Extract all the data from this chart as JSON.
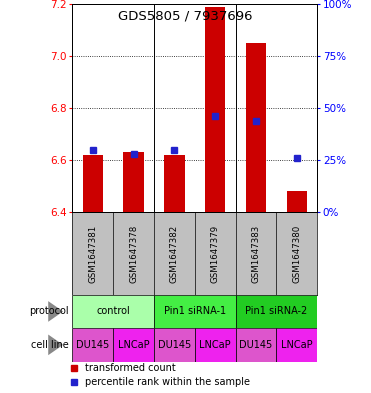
{
  "title": "GDS5805 / 7937696",
  "samples": [
    "GSM1647381",
    "GSM1647378",
    "GSM1647382",
    "GSM1647379",
    "GSM1647383",
    "GSM1647380"
  ],
  "bar_values": [
    6.62,
    6.63,
    6.62,
    7.19,
    7.05,
    6.48
  ],
  "percentile_pct": [
    30,
    28,
    30,
    46,
    44,
    26
  ],
  "ylim": [
    6.4,
    7.2
  ],
  "yticks": [
    6.4,
    6.6,
    6.8,
    7.0,
    7.2
  ],
  "right_yticks": [
    0,
    25,
    50,
    75,
    100
  ],
  "bar_color": "#CC0000",
  "blue_color": "#2222CC",
  "bar_width": 0.5,
  "protocol_groups": [
    {
      "label": "control",
      "span": [
        0,
        1
      ],
      "color": "#AAFFAA"
    },
    {
      "label": "Pin1 siRNA-1",
      "span": [
        2,
        3
      ],
      "color": "#44EE44"
    },
    {
      "label": "Pin1 siRNA-2",
      "span": [
        4,
        5
      ],
      "color": "#22CC22"
    }
  ],
  "cell_lines": [
    "DU145",
    "LNCaP",
    "DU145",
    "LNCaP",
    "DU145",
    "LNCaP"
  ],
  "du145_color": "#DD55CC",
  "lncap_color": "#EE22EE",
  "bg_color": "#C0C0C0",
  "legend_red": "transformed count",
  "legend_blue": "percentile rank within the sample"
}
